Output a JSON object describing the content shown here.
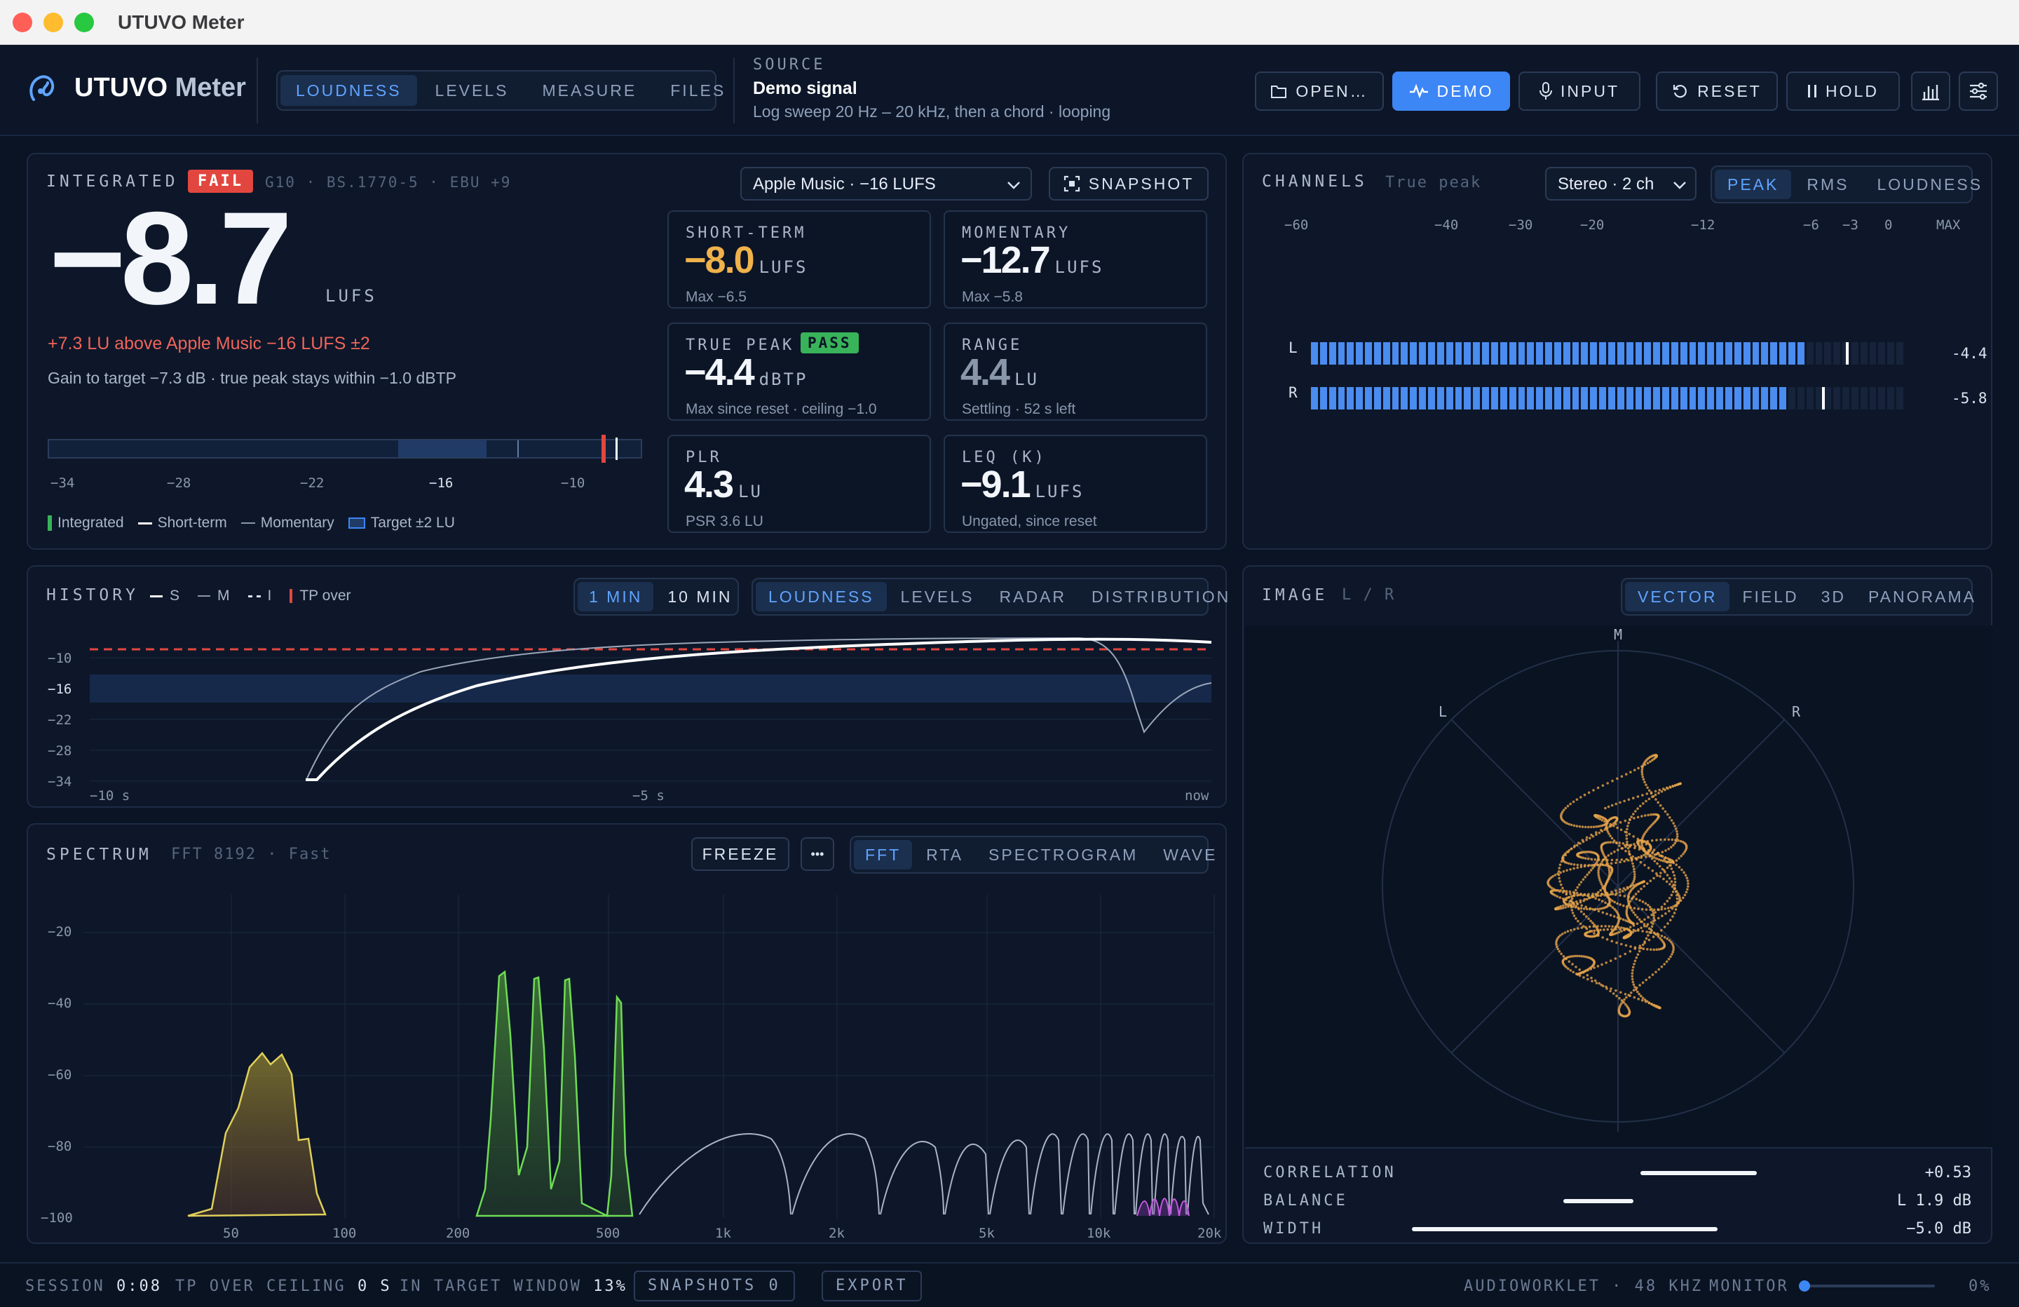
{
  "window": {
    "title": "UTUVO Meter"
  },
  "app": {
    "name_a": "UTUVO",
    "name_b": "Meter"
  },
  "nav": {
    "tabs": [
      "LOUDNESS",
      "LEVELS",
      "MEASURE",
      "FILES"
    ]
  },
  "source": {
    "label": "SOURCE",
    "name": "Demo signal",
    "desc": "Log sweep 20 Hz – 20 kHz, then a chord · looping"
  },
  "toolbar": {
    "open": "OPEN…",
    "demo": "DEMO",
    "input": "INPUT",
    "reset": "RESET",
    "hold": "HOLD"
  },
  "integrated": {
    "label": "INTEGRATED",
    "badge": "FAIL",
    "meta": "G10 · BS.1770-5 · EBU +9",
    "value": "−8.7",
    "unit": "LUFS",
    "warn": "+7.3 LU above Apple Music −16 LUFS ±2",
    "note": "Gain to target −7.3 dB · true peak stays within −1.0 dBTP",
    "preset": "Apple Music · −16 LUFS",
    "snapshot": "SNAPSHOT",
    "scale": [
      "−34",
      "−28",
      "−22",
      "−16",
      "−10"
    ],
    "legend": [
      "Integrated",
      "Short-term",
      "Momentary",
      "Target ±2 LU"
    ]
  },
  "cards": {
    "short": {
      "label": "SHORT-TERM",
      "value": "−8.0",
      "unit": "LUFS",
      "sub": "Max −6.5"
    },
    "mom": {
      "label": "MOMENTARY",
      "value": "−12.7",
      "unit": "LUFS",
      "sub": "Max −5.8"
    },
    "tp": {
      "label": "TRUE PEAK",
      "badge": "PASS",
      "value": "−4.4",
      "unit": "dBTP",
      "sub": "Max since reset · ceiling −1.0"
    },
    "range": {
      "label": "RANGE",
      "value": "4.4",
      "unit": "LU",
      "sub": "Settling · 52 s left"
    },
    "plr": {
      "label": "PLR",
      "value": "4.3",
      "unit": "LU",
      "sub": "PSR 3.6 LU"
    },
    "leq": {
      "label": "LEQ (K)",
      "value": "−9.1",
      "unit": "LUFS",
      "sub": "Ungated, since reset"
    }
  },
  "channels": {
    "label": "CHANNELS",
    "sub": "True peak",
    "select": "Stereo · 2 ch",
    "tabs": [
      "PEAK",
      "RMS",
      "LOUDNESS"
    ],
    "scale": [
      "−60",
      "−40",
      "−30",
      "−20",
      "−12",
      "−6",
      "−3",
      "0",
      "MAX"
    ],
    "rows": [
      {
        "ch": "L",
        "val": "-4.4",
        "level": 0.82,
        "hold": 0.9
      },
      {
        "ch": "R",
        "val": "-5.8",
        "level": 0.8,
        "hold": 0.86
      }
    ]
  },
  "history": {
    "label": "HISTORY",
    "legend": [
      "S",
      "M",
      "I",
      "TP over"
    ],
    "range_tabs": [
      "1 MIN",
      "10 MIN"
    ],
    "tabs": [
      "LOUDNESS",
      "LEVELS",
      "RADAR",
      "DISTRIBUTION"
    ],
    "y": [
      "−10",
      "−16",
      "−22",
      "−28",
      "−34"
    ],
    "x": [
      "−10 s",
      "−5 s",
      "now"
    ]
  },
  "spectrum": {
    "label": "SPECTRUM",
    "sub": "FFT 8192 · Fast",
    "freeze": "FREEZE",
    "more": "•••",
    "tabs": [
      "FFT",
      "RTA",
      "SPECTROGRAM",
      "WAVE"
    ],
    "y": [
      "−20",
      "−40",
      "−60",
      "−80",
      "−100"
    ],
    "x": [
      "50",
      "100",
      "200",
      "500",
      "1k",
      "2k",
      "5k",
      "10k",
      "20k"
    ]
  },
  "image": {
    "label": "IMAGE",
    "sub": "L / R",
    "tabs": [
      "VECTOR",
      "FIELD",
      "3D",
      "PANORAMA"
    ],
    "axes": [
      "M",
      "L",
      "R"
    ],
    "stats": [
      {
        "k": "CORRELATION",
        "v": "+0.53"
      },
      {
        "k": "BALANCE",
        "v": "L 1.9 dB"
      },
      {
        "k": "WIDTH",
        "v": "−5.0 dB"
      }
    ]
  },
  "status": {
    "session_k": "SESSION",
    "session_v": "0:08",
    "tp_k": "TP OVER CEILING",
    "tp_v": "0 S",
    "win_k": "IN TARGET WINDOW",
    "win_v": "13%",
    "snapshots": "SNAPSHOTS 0",
    "export": "EXPORT",
    "engine": "AUDIOWORKLET · 48 KHZ",
    "monitor": "MONITOR",
    "vol": "0%"
  },
  "colors": {
    "accent": "#3d86f5",
    "fail": "#e2473f",
    "pass": "#38b35a",
    "short": "#f0b24a",
    "vector": "#e5a24a"
  }
}
